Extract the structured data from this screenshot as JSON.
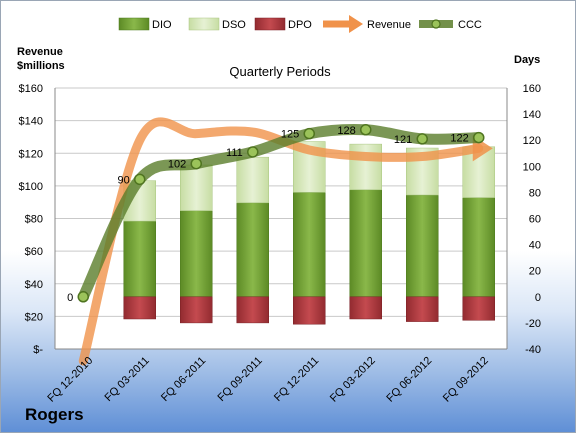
{
  "company": "Rogers",
  "chart_data": {
    "type": "bar",
    "title": "Quarterly Periods",
    "ylabel_left": "Revenue\n$millions",
    "ylabel_right": "Days",
    "categories": [
      "FQ 12-2010",
      "FQ 03-2011",
      "FQ 06-2011",
      "FQ 09-2011",
      "FQ 12-2011",
      "FQ 03-2012",
      "FQ 06-2012",
      "FQ 09-2012"
    ],
    "ylim_left": [
      0,
      160
    ],
    "ylim_right": [
      -40,
      160
    ],
    "left_ticks": [
      "$-",
      "$20",
      "$40",
      "$60",
      "$80",
      "$100",
      "$120",
      "$140",
      "$160"
    ],
    "right_ticks": [
      "-40",
      "-20",
      "0",
      "20",
      "40",
      "60",
      "80",
      "100",
      "120",
      "140",
      "160"
    ],
    "legend_position": "top",
    "series": [
      {
        "name": "DIO",
        "kind": "stacked-bar",
        "axis": "right",
        "color": "#77a33a",
        "values": [
          null,
          58,
          66,
          72,
          80,
          82,
          78,
          76
        ]
      },
      {
        "name": "DSO",
        "kind": "stacked-bar",
        "axis": "right",
        "color": "#d6e8b8",
        "values": [
          null,
          31,
          35,
          35,
          39,
          35,
          36,
          39
        ]
      },
      {
        "name": "DPO",
        "kind": "bar-negative",
        "axis": "right",
        "color": "#b5383d",
        "values": [
          null,
          -17,
          -20,
          -20,
          -21,
          -17,
          -19,
          -18
        ]
      },
      {
        "name": "Revenue",
        "kind": "line",
        "axis": "left",
        "color": "#f0924a",
        "values": [
          -25,
          128,
          132,
          133,
          122,
          118,
          118,
          123
        ]
      },
      {
        "name": "CCC",
        "kind": "line",
        "axis": "right",
        "color": "#5a7d2a",
        "values": [
          0,
          90,
          102,
          111,
          125,
          128,
          121,
          122
        ]
      }
    ],
    "ccc_labels": [
      "0",
      "90",
      "102",
      "111",
      "125",
      "128",
      "121",
      "122"
    ]
  }
}
